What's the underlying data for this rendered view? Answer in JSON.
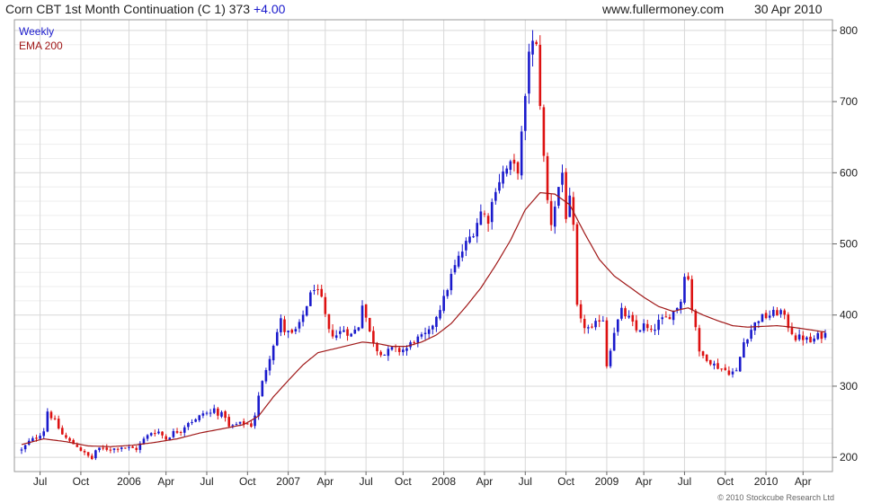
{
  "header": {
    "title": "Corn CBT 1st Month Continuation (C 1) 373",
    "change": "+4.00",
    "site": "www.fullermoney.com",
    "date": "30 Apr 2010"
  },
  "footer": {
    "copyright": "© 2010 Stockcube Research Ltd"
  },
  "colors": {
    "up": "#1a1acc",
    "down": "#dd1111",
    "ema": "#a01818",
    "grid": "#d8d8d8",
    "change": "#1a1acc"
  },
  "chart_data": {
    "type": "candlestick",
    "legend": [
      "Weekly",
      "EMA 200"
    ],
    "legend_placement": "top-left",
    "grid": true,
    "ylim": [
      180,
      815
    ],
    "y_ticks": [
      200,
      300,
      400,
      500,
      600,
      700,
      800
    ],
    "x_range": [
      0,
      217
    ],
    "x_ticks": [
      {
        "label": "Jul",
        "x": 5
      },
      {
        "label": "Oct",
        "x": 16
      },
      {
        "label": "2006",
        "x": 29
      },
      {
        "label": "Apr",
        "x": 39
      },
      {
        "label": "Jul",
        "x": 50
      },
      {
        "label": "Oct",
        "x": 61
      },
      {
        "label": "2007",
        "x": 72
      },
      {
        "label": "Apr",
        "x": 82
      },
      {
        "label": "Jul",
        "x": 93
      },
      {
        "label": "Oct",
        "x": 103
      },
      {
        "label": "2008",
        "x": 114
      },
      {
        "label": "Apr",
        "x": 125
      },
      {
        "label": "Jul",
        "x": 136
      },
      {
        "label": "Oct",
        "x": 147
      },
      {
        "label": "2009",
        "x": 158
      },
      {
        "label": "Apr",
        "x": 168
      },
      {
        "label": "Jul",
        "x": 179
      },
      {
        "label": "Oct",
        "x": 190
      },
      {
        "label": "2010",
        "x": 201
      },
      {
        "label": "Apr",
        "x": 211
      }
    ],
    "close_path": [
      [
        0,
        210
      ],
      [
        2,
        222
      ],
      [
        4,
        228
      ],
      [
        6,
        238
      ],
      [
        7,
        265
      ],
      [
        9,
        250
      ],
      [
        11,
        232
      ],
      [
        13,
        222
      ],
      [
        15,
        216
      ],
      [
        17,
        205
      ],
      [
        19,
        198
      ],
      [
        20,
        210
      ],
      [
        22,
        212
      ],
      [
        25,
        212
      ],
      [
        27,
        215
      ],
      [
        29,
        213
      ],
      [
        31,
        212
      ],
      [
        33,
        225
      ],
      [
        35,
        235
      ],
      [
        37,
        236
      ],
      [
        39,
        226
      ],
      [
        41,
        235
      ],
      [
        43,
        238
      ],
      [
        45,
        250
      ],
      [
        47,
        252
      ],
      [
        49,
        262
      ],
      [
        51,
        262
      ],
      [
        52,
        268
      ],
      [
        53,
        262
      ],
      [
        55,
        258
      ],
      [
        56,
        242
      ],
      [
        58,
        246
      ],
      [
        60,
        248
      ],
      [
        62,
        245
      ],
      [
        63,
        260
      ],
      [
        64,
        285
      ],
      [
        66,
        325
      ],
      [
        68,
        360
      ],
      [
        70,
        392
      ],
      [
        71,
        378
      ],
      [
        73,
        372
      ],
      [
        75,
        385
      ],
      [
        77,
        415
      ],
      [
        79,
        440
      ],
      [
        81,
        420
      ],
      [
        83,
        376
      ],
      [
        85,
        372
      ],
      [
        87,
        380
      ],
      [
        89,
        372
      ],
      [
        91,
        385
      ],
      [
        92,
        418
      ],
      [
        94,
        375
      ],
      [
        96,
        352
      ],
      [
        98,
        345
      ],
      [
        100,
        352
      ],
      [
        102,
        350
      ],
      [
        104,
        353
      ],
      [
        106,
        365
      ],
      [
        108,
        368
      ],
      [
        110,
        375
      ],
      [
        112,
        400
      ],
      [
        114,
        422
      ],
      [
        116,
        455
      ],
      [
        118,
        480
      ],
      [
        120,
        500
      ],
      [
        122,
        518
      ],
      [
        124,
        545
      ],
      [
        126,
        535
      ],
      [
        128,
        580
      ],
      [
        130,
        600
      ],
      [
        132,
        610
      ],
      [
        134,
        605
      ],
      [
        136,
        700
      ],
      [
        137,
        775
      ],
      [
        138,
        780
      ],
      [
        139,
        775
      ],
      [
        140,
        700
      ],
      [
        141,
        620
      ],
      [
        142,
        560
      ],
      [
        143,
        530
      ],
      [
        144,
        555
      ],
      [
        145,
        580
      ],
      [
        146,
        600
      ],
      [
        147,
        540
      ],
      [
        148,
        560
      ],
      [
        149,
        520
      ],
      [
        150,
        410
      ],
      [
        151,
        390
      ],
      [
        152,
        385
      ],
      [
        154,
        378
      ],
      [
        156,
        395
      ],
      [
        157,
        395
      ],
      [
        158,
        330
      ],
      [
        160,
        378
      ],
      [
        162,
        405
      ],
      [
        164,
        395
      ],
      [
        166,
        378
      ],
      [
        168,
        385
      ],
      [
        170,
        375
      ],
      [
        172,
        390
      ],
      [
        174,
        395
      ],
      [
        176,
        405
      ],
      [
        178,
        420
      ],
      [
        179,
        460
      ],
      [
        180,
        450
      ],
      [
        181,
        410
      ],
      [
        182,
        385
      ],
      [
        183,
        345
      ],
      [
        185,
        340
      ],
      [
        187,
        330
      ],
      [
        189,
        325
      ],
      [
        191,
        320
      ],
      [
        193,
        320
      ],
      [
        195,
        362
      ],
      [
        197,
        380
      ],
      [
        199,
        395
      ],
      [
        201,
        398
      ],
      [
        203,
        402
      ],
      [
        205,
        405
      ],
      [
        207,
        385
      ],
      [
        209,
        368
      ],
      [
        211,
        368
      ],
      [
        213,
        362
      ],
      [
        215,
        370
      ],
      [
        217,
        373
      ]
    ],
    "ema_path": [
      [
        0,
        218
      ],
      [
        6,
        226
      ],
      [
        12,
        222
      ],
      [
        18,
        216
      ],
      [
        24,
        215
      ],
      [
        30,
        217
      ],
      [
        36,
        221
      ],
      [
        42,
        226
      ],
      [
        48,
        234
      ],
      [
        54,
        240
      ],
      [
        60,
        246
      ],
      [
        64,
        258
      ],
      [
        68,
        285
      ],
      [
        72,
        308
      ],
      [
        76,
        330
      ],
      [
        80,
        347
      ],
      [
        84,
        352
      ],
      [
        88,
        357
      ],
      [
        92,
        362
      ],
      [
        96,
        360
      ],
      [
        100,
        356
      ],
      [
        104,
        356
      ],
      [
        108,
        362
      ],
      [
        112,
        372
      ],
      [
        116,
        388
      ],
      [
        120,
        412
      ],
      [
        124,
        438
      ],
      [
        128,
        470
      ],
      [
        132,
        505
      ],
      [
        136,
        548
      ],
      [
        140,
        572
      ],
      [
        144,
        570
      ],
      [
        148,
        555
      ],
      [
        152,
        515
      ],
      [
        156,
        478
      ],
      [
        160,
        455
      ],
      [
        164,
        440
      ],
      [
        168,
        425
      ],
      [
        172,
        412
      ],
      [
        176,
        405
      ],
      [
        178,
        408
      ],
      [
        180,
        410
      ],
      [
        184,
        400
      ],
      [
        188,
        392
      ],
      [
        192,
        385
      ],
      [
        196,
        383
      ],
      [
        200,
        384
      ],
      [
        204,
        385
      ],
      [
        208,
        383
      ],
      [
        212,
        380
      ],
      [
        217,
        376
      ]
    ]
  }
}
